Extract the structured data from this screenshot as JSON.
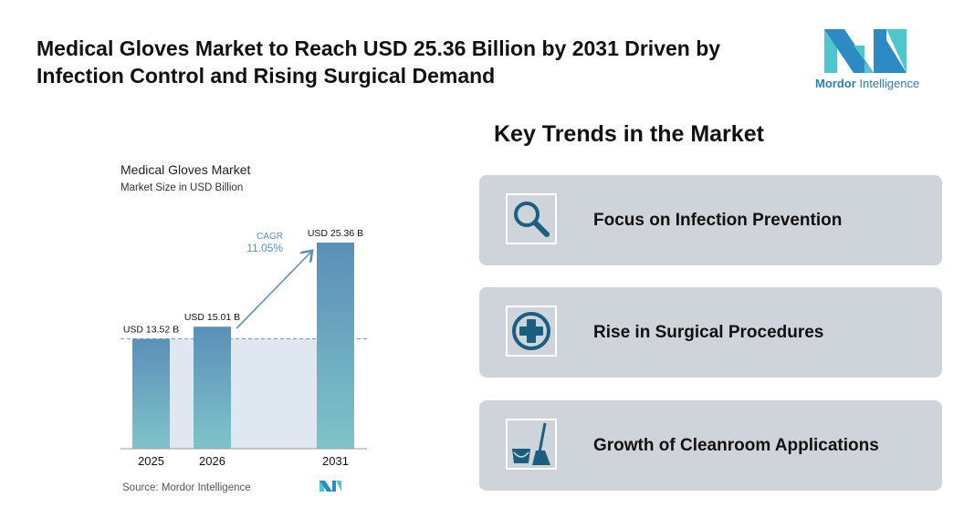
{
  "header": {
    "title": "Medical Gloves Market to Reach USD 25.36 Billion by 2031 Driven by Infection Control and Rising Surgical Demand"
  },
  "logo": {
    "name_bold": "Mordor",
    "name_rest": "Intelligence"
  },
  "chart_data": {
    "type": "bar",
    "title": "Medical Gloves Market",
    "subtitle": "Market Size in USD Billion",
    "categories": [
      "2025",
      "2026",
      "2031"
    ],
    "values": [
      13.52,
      15.01,
      25.36
    ],
    "data_labels": [
      "USD 13.52 B",
      "USD 15.01 B",
      "USD 25.36 B"
    ],
    "annotation": {
      "label": "CAGR",
      "value": "11.05%"
    },
    "source": "Source: Mordor Intelligence",
    "ylim": [
      0,
      25.36
    ],
    "grid": false,
    "colors": {
      "bar_top": "#5b8fb8",
      "bar_bottom": "#7ec4c9",
      "annotation": "#5b8fb8",
      "shade": "#dfe8f0"
    }
  },
  "trends": {
    "title": "Key Trends in the Market",
    "items": [
      {
        "label": "Focus on Infection Prevention",
        "icon": "magnifier-icon"
      },
      {
        "label": "Rise in Surgical Procedures",
        "icon": "medical-cross-icon"
      },
      {
        "label": "Growth of Cleanroom Applications",
        "icon": "bucket-mop-icon"
      }
    ],
    "icon_color": "#1a5f82"
  }
}
